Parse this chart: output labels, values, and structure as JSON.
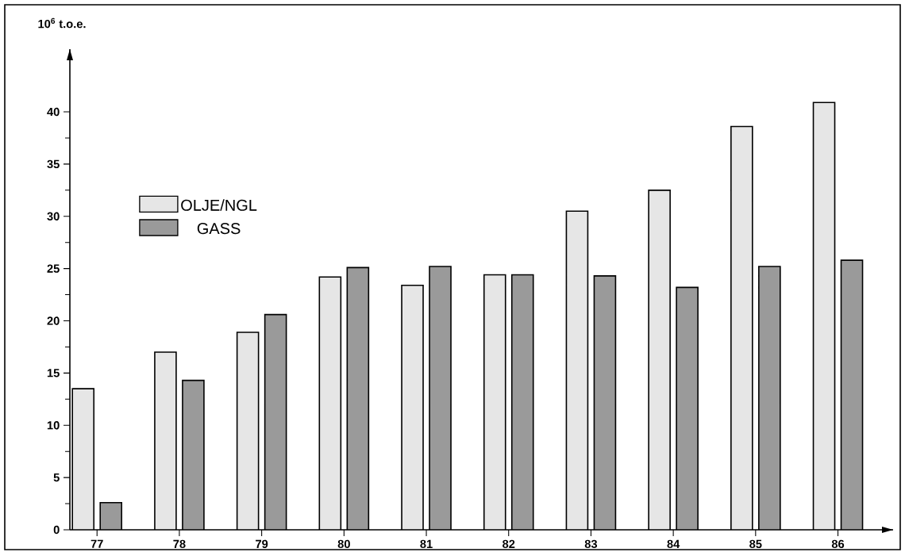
{
  "chart_data": {
    "type": "bar",
    "ylabel": "10$^{6}$ t.o.e.",
    "categories": [
      "77",
      "78",
      "79",
      "80",
      "81",
      "82",
      "83",
      "84",
      "85",
      "86"
    ],
    "series": [
      {
        "name": "OLJE/NGL",
        "color": "#e6e6e6",
        "values": [
          13.5,
          17.0,
          18.9,
          24.2,
          23.4,
          24.4,
          30.5,
          32.5,
          38.6,
          40.9
        ]
      },
      {
        "name": "GASS",
        "color": "#9a9a9a",
        "values": [
          2.6,
          14.3,
          20.6,
          25.1,
          25.2,
          24.4,
          24.3,
          23.2,
          25.2,
          25.8
        ]
      }
    ],
    "ylim": [
      0,
      46
    ],
    "yticks": [
      0,
      5,
      10,
      15,
      20,
      25,
      30,
      35,
      40
    ],
    "legend": "top left",
    "grid": false
  }
}
